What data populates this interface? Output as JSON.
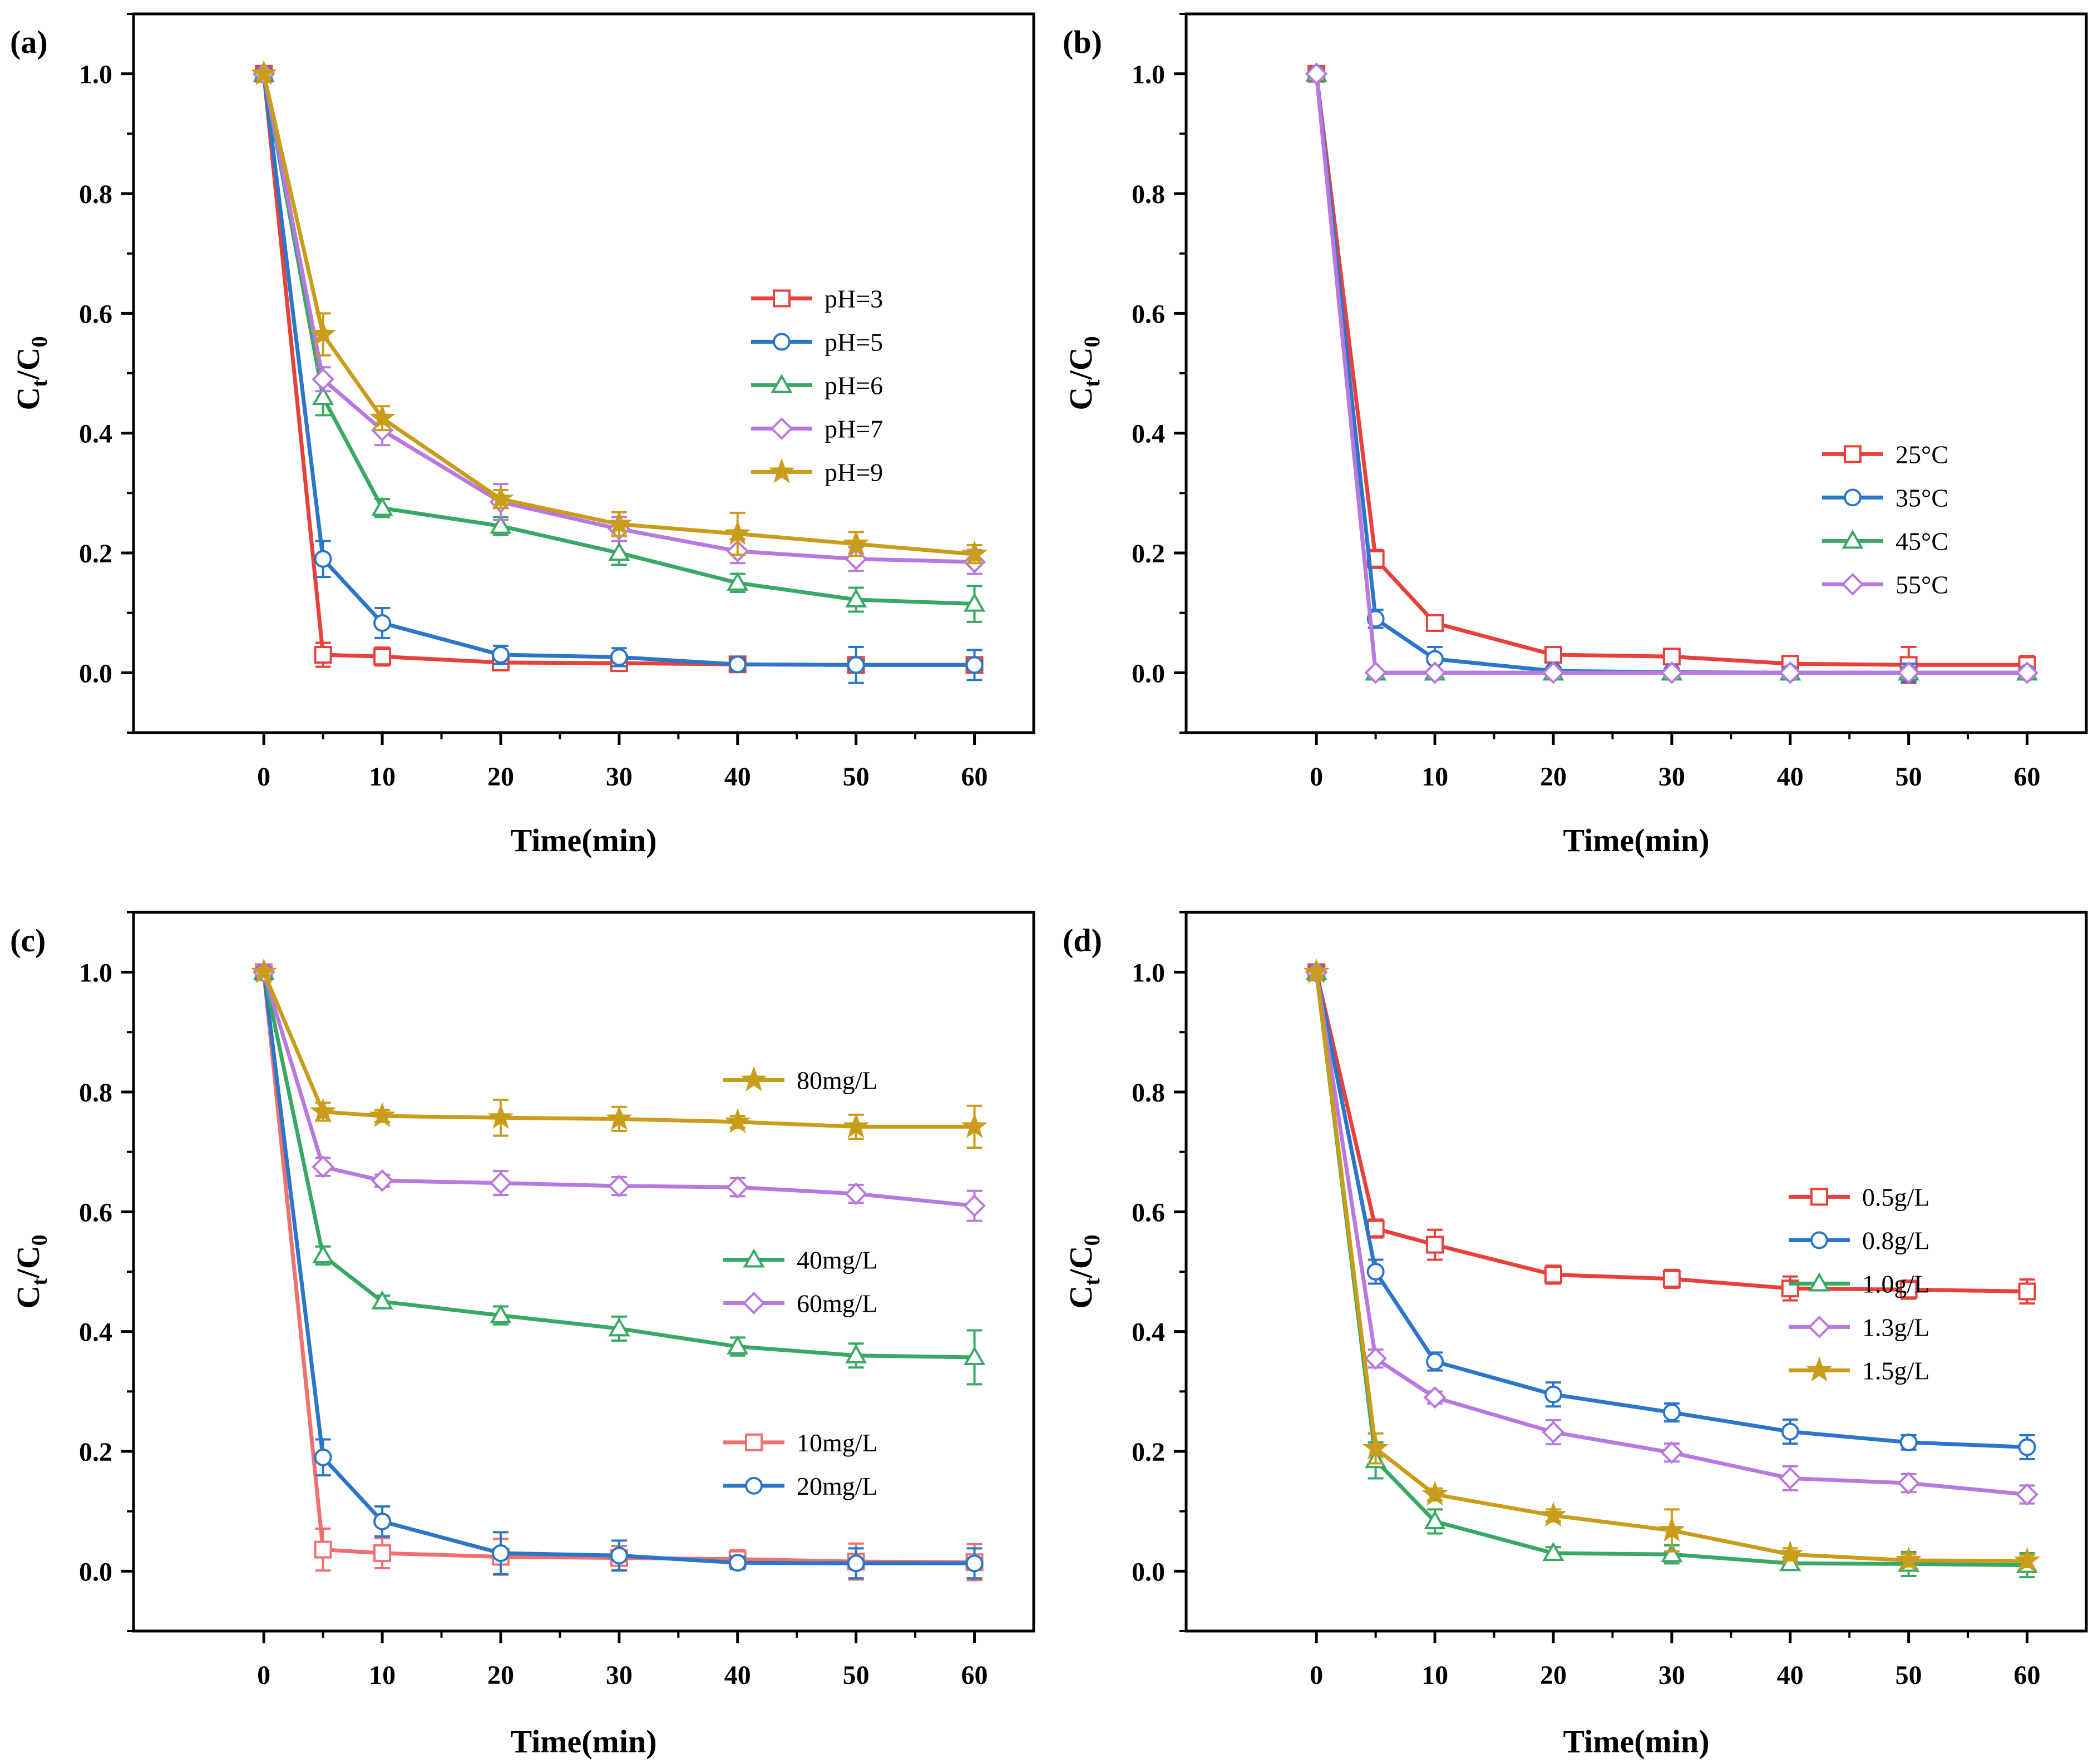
{
  "figure": {
    "panels": [
      "(a)",
      "(b)",
      "(c)",
      "(d)"
    ]
  },
  "chart_data": [
    {
      "panel": "(a)",
      "type": "line",
      "xlabel": "Time(min)",
      "ylabel_main": "C",
      "ylabel_sub1": "t",
      "ylabel_mid": "/C",
      "ylabel_sub2": "0",
      "xlim": [
        -11,
        65
      ],
      "ylim": [
        -0.1,
        1.1
      ],
      "xticks": [
        0,
        10,
        20,
        30,
        40,
        50,
        60
      ],
      "yticks": [
        0.0,
        0.2,
        0.4,
        0.6,
        0.8,
        1.0
      ],
      "ytick_labels": [
        "0.0",
        "0.2",
        "0.4",
        "0.6",
        "0.8",
        "1.0"
      ],
      "x": [
        0,
        5,
        10,
        20,
        30,
        40,
        50,
        60
      ],
      "legend_order": [
        0,
        1,
        2,
        3,
        4
      ],
      "series": [
        {
          "name": "pH=3",
          "color": "#e8413b",
          "marker": "square",
          "values": [
            1.0,
            0.03,
            0.027,
            0.017,
            0.016,
            0.014,
            0.013,
            0.013
          ],
          "err": [
            0,
            0.02,
            0.015,
            0.01,
            0.01,
            0.01,
            0.01,
            0.01
          ]
        },
        {
          "name": "pH=5",
          "color": "#2a76c8",
          "marker": "circle",
          "values": [
            1.0,
            0.19,
            0.083,
            0.03,
            0.026,
            0.014,
            0.013,
            0.013
          ],
          "err": [
            0,
            0.03,
            0.025,
            0.015,
            0.015,
            0.01,
            0.03,
            0.025
          ]
        },
        {
          "name": "pH=6",
          "color": "#3aa865",
          "marker": "triangle",
          "values": [
            1.0,
            0.46,
            0.275,
            0.245,
            0.2,
            0.15,
            0.122,
            0.115
          ],
          "err": [
            0,
            0.03,
            0.015,
            0.015,
            0.02,
            0.015,
            0.02,
            0.03
          ]
        },
        {
          "name": "pH=7",
          "color": "#b978e0",
          "marker": "diamond",
          "values": [
            1.0,
            0.49,
            0.405,
            0.285,
            0.24,
            0.203,
            0.19,
            0.185
          ],
          "err": [
            0,
            0.02,
            0.025,
            0.03,
            0.02,
            0.02,
            0.02,
            0.02
          ]
        },
        {
          "name": "pH=9",
          "color": "#c99c1a",
          "marker": "star",
          "values": [
            1.0,
            0.565,
            0.425,
            0.29,
            0.248,
            0.232,
            0.215,
            0.198
          ],
          "err": [
            0,
            0.035,
            0.02,
            0.015,
            0.02,
            0.035,
            0.02,
            0.015
          ]
        }
      ],
      "legend_groups": [
        {
          "items": [
            0,
            1,
            2,
            3,
            4
          ],
          "anchor_y": 0.625
        }
      ]
    },
    {
      "panel": "(b)",
      "type": "line",
      "xlabel": "Time(min)",
      "ylabel_main": "C",
      "ylabel_sub1": "t",
      "ylabel_mid": "/C",
      "ylabel_sub2": "0",
      "xlim": [
        -11,
        65
      ],
      "ylim": [
        -0.1,
        1.1
      ],
      "xticks": [
        0,
        10,
        20,
        30,
        40,
        50,
        60
      ],
      "yticks": [
        0.0,
        0.2,
        0.4,
        0.6,
        0.8,
        1.0
      ],
      "ytick_labels": [
        "0.0",
        "0.2",
        "0.4",
        "0.6",
        "0.8",
        "1.0"
      ],
      "x": [
        0,
        5,
        10,
        20,
        30,
        40,
        50,
        60
      ],
      "series": [
        {
          "name": "25°C",
          "color": "#e8413b",
          "marker": "square",
          "values": [
            1.0,
            0.19,
            0.083,
            0.03,
            0.027,
            0.015,
            0.013,
            0.013
          ],
          "err": [
            0,
            0.015,
            0.01,
            0.01,
            0.01,
            0.01,
            0.03,
            0.015
          ]
        },
        {
          "name": "35°C",
          "color": "#2a76c8",
          "marker": "circle",
          "values": [
            1.0,
            0.09,
            0.023,
            0.003,
            0.001,
            0.0,
            0.0,
            0.0
          ],
          "err": [
            0,
            0.015,
            0.02,
            0.005,
            0.005,
            0.005,
            0.015,
            0.005
          ]
        },
        {
          "name": "45°C",
          "color": "#3aa865",
          "marker": "triangle",
          "values": [
            1.0,
            0.0,
            0.0,
            0.0,
            0.0,
            0.0,
            0.0,
            0.0
          ],
          "err": [
            0,
            0.005,
            0.005,
            0.005,
            0.005,
            0.005,
            0.005,
            0.005
          ]
        },
        {
          "name": "55°C",
          "color": "#b978e0",
          "marker": "diamond",
          "values": [
            1.0,
            0.0,
            0.0,
            0.0,
            0.0,
            0.0,
            0.0,
            0.0
          ],
          "err": [
            0,
            0.005,
            0.005,
            0.005,
            0.005,
            0.005,
            0.005,
            0.005
          ]
        }
      ],
      "legend_groups": [
        {
          "items": [
            0,
            1,
            2,
            3
          ],
          "anchor_y": 0.365
        }
      ]
    },
    {
      "panel": "(c)",
      "type": "line",
      "xlabel": "Time(min)",
      "ylabel_main": "C",
      "ylabel_sub1": "t",
      "ylabel_mid": "/C",
      "ylabel_sub2": "0",
      "xlim": [
        -11,
        65
      ],
      "ylim": [
        -0.1,
        1.1
      ],
      "xticks": [
        0,
        10,
        20,
        30,
        40,
        50,
        60
      ],
      "yticks": [
        0.0,
        0.2,
        0.4,
        0.6,
        0.8,
        1.0
      ],
      "ytick_labels": [
        "0.0",
        "0.2",
        "0.4",
        "0.6",
        "0.8",
        "1.0"
      ],
      "x": [
        0,
        5,
        10,
        20,
        30,
        40,
        50,
        60
      ],
      "series": [
        {
          "name": "10mg/L",
          "color": "#f07070",
          "marker": "square",
          "values": [
            1.0,
            0.036,
            0.03,
            0.024,
            0.022,
            0.02,
            0.016,
            0.015
          ],
          "err": [
            0,
            0.035,
            0.025,
            0.03,
            0.02,
            0.015,
            0.03,
            0.03
          ]
        },
        {
          "name": "20mg/L",
          "color": "#2a76c8",
          "marker": "circle",
          "values": [
            1.0,
            0.19,
            0.083,
            0.03,
            0.026,
            0.014,
            0.013,
            0.013
          ],
          "err": [
            0,
            0.03,
            0.025,
            0.035,
            0.025,
            0.01,
            0.025,
            0.025
          ]
        },
        {
          "name": "40mg/L",
          "color": "#3aa865",
          "marker": "triangle",
          "values": [
            1.0,
            0.527,
            0.45,
            0.427,
            0.405,
            0.375,
            0.36,
            0.357
          ],
          "err": [
            0,
            0.015,
            0.01,
            0.015,
            0.02,
            0.015,
            0.02,
            0.045
          ]
        },
        {
          "name": "60mg/L",
          "color": "#b978e0",
          "marker": "diamond",
          "values": [
            1.0,
            0.675,
            0.652,
            0.648,
            0.643,
            0.641,
            0.63,
            0.61
          ],
          "err": [
            0,
            0.015,
            0.01,
            0.02,
            0.015,
            0.015,
            0.015,
            0.025
          ]
        },
        {
          "name": "80mg/L",
          "color": "#c99c1a",
          "marker": "star",
          "values": [
            1.0,
            0.767,
            0.76,
            0.757,
            0.755,
            0.75,
            0.742,
            0.742
          ],
          "err": [
            0,
            0.015,
            0.01,
            0.03,
            0.02,
            0.01,
            0.02,
            0.035
          ]
        }
      ],
      "legend_groups": [
        {
          "items": [
            4
          ],
          "anchor_y": 0.82
        },
        {
          "items": [
            2,
            3
          ],
          "anchor_y": 0.52
        },
        {
          "items": [
            0,
            1
          ],
          "anchor_y": 0.215
        }
      ]
    },
    {
      "panel": "(d)",
      "type": "line",
      "xlabel": "Time(min)",
      "ylabel_main": "C",
      "ylabel_sub1": "t",
      "ylabel_mid": "/C",
      "ylabel_sub2": "0",
      "xlim": [
        -11,
        65
      ],
      "ylim": [
        -0.1,
        1.1
      ],
      "xticks": [
        0,
        10,
        20,
        30,
        40,
        50,
        60
      ],
      "yticks": [
        0.0,
        0.2,
        0.4,
        0.6,
        0.8,
        1.0
      ],
      "ytick_labels": [
        "0.0",
        "0.2",
        "0.4",
        "0.6",
        "0.8",
        "1.0"
      ],
      "x": [
        0,
        5,
        10,
        20,
        30,
        40,
        50,
        60
      ],
      "series": [
        {
          "name": "0.5g/L",
          "color": "#e8413b",
          "marker": "square",
          "values": [
            1.0,
            0.572,
            0.545,
            0.495,
            0.488,
            0.472,
            0.47,
            0.467
          ],
          "err": [
            0,
            0.015,
            0.025,
            0.015,
            0.015,
            0.02,
            0.015,
            0.02
          ]
        },
        {
          "name": "0.8g/L",
          "color": "#2a76c8",
          "marker": "circle",
          "values": [
            1.0,
            0.5,
            0.35,
            0.295,
            0.265,
            0.233,
            0.215,
            0.207
          ],
          "err": [
            0,
            0.02,
            0.015,
            0.02,
            0.015,
            0.02,
            0.012,
            0.02
          ]
        },
        {
          "name": "1.0g/L",
          "color": "#3aa865",
          "marker": "triangle",
          "values": [
            1.0,
            0.185,
            0.083,
            0.03,
            0.028,
            0.013,
            0.012,
            0.01
          ],
          "err": [
            0,
            0.03,
            0.02,
            0.01,
            0.015,
            0.01,
            0.02,
            0.02
          ]
        },
        {
          "name": "1.3g/L",
          "color": "#b978e0",
          "marker": "diamond",
          "values": [
            1.0,
            0.355,
            0.29,
            0.232,
            0.198,
            0.155,
            0.147,
            0.128
          ],
          "err": [
            0,
            0.015,
            0.01,
            0.02,
            0.015,
            0.02,
            0.015,
            0.015
          ]
        },
        {
          "name": "1.5g/L",
          "color": "#c99c1a",
          "marker": "star",
          "values": [
            1.0,
            0.205,
            0.128,
            0.093,
            0.068,
            0.028,
            0.018,
            0.017
          ],
          "err": [
            0,
            0.025,
            0.01,
            0.01,
            0.035,
            0.01,
            0.01,
            0.01
          ]
        }
      ],
      "legend_groups": [
        {
          "items": [
            0,
            1,
            2,
            3,
            4
          ],
          "anchor_y": 0.625
        }
      ]
    }
  ]
}
